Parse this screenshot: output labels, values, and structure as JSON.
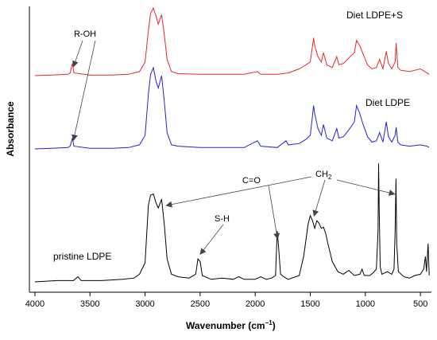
{
  "chart_data": {
    "type": "line",
    "title": "",
    "xlabel": "Wavenumber (cm⁻¹)",
    "xlabel_main": "Wavenumber (cm",
    "xlabel_sup": "−1",
    "xlabel_close": ")",
    "ylabel": "Absorbance",
    "x_reversed": true,
    "xlim": [
      4050,
      400
    ],
    "x_ticks": [
      4000,
      3500,
      3000,
      2500,
      2000,
      1500,
      1000,
      500
    ],
    "y_ticks_shown": false,
    "grid": false,
    "legend": "none (series labelled inline)",
    "series": [
      {
        "name": "Diet LDPE+S",
        "color": "#e8262a",
        "baseline": 0.0,
        "points": [
          [
            4000,
            0.0
          ],
          [
            3850,
            0.005
          ],
          [
            3700,
            0.01
          ],
          [
            3680,
            0.02
          ],
          [
            3660,
            0.09
          ],
          [
            3645,
            0.02
          ],
          [
            3500,
            0.005
          ],
          [
            3300,
            0.005
          ],
          [
            3150,
            0.01
          ],
          [
            3050,
            0.03
          ],
          [
            3000,
            0.1
          ],
          [
            2970,
            0.33
          ],
          [
            2950,
            0.46
          ],
          [
            2925,
            0.5
          ],
          [
            2900,
            0.44
          ],
          [
            2880,
            0.38
          ],
          [
            2850,
            0.45
          ],
          [
            2825,
            0.3
          ],
          [
            2800,
            0.12
          ],
          [
            2760,
            0.03
          ],
          [
            2700,
            0.015
          ],
          [
            2500,
            0.01
          ],
          [
            2300,
            0.01
          ],
          [
            2100,
            0.01
          ],
          [
            1980,
            0.03
          ],
          [
            1950,
            0.01
          ],
          [
            1800,
            0.01
          ],
          [
            1700,
            0.02
          ],
          [
            1600,
            0.05
          ],
          [
            1540,
            0.08
          ],
          [
            1500,
            0.1
          ],
          [
            1470,
            0.28
          ],
          [
            1460,
            0.22
          ],
          [
            1430,
            0.14
          ],
          [
            1400,
            0.1
          ],
          [
            1380,
            0.17
          ],
          [
            1350,
            0.08
          ],
          [
            1300,
            0.06
          ],
          [
            1260,
            0.14
          ],
          [
            1240,
            0.08
          ],
          [
            1200,
            0.09
          ],
          [
            1150,
            0.13
          ],
          [
            1100,
            0.17
          ],
          [
            1080,
            0.26
          ],
          [
            1050,
            0.22
          ],
          [
            1020,
            0.16
          ],
          [
            980,
            0.08
          ],
          [
            940,
            0.05
          ],
          [
            900,
            0.06
          ],
          [
            870,
            0.12
          ],
          [
            840,
            0.05
          ],
          [
            810,
            0.18
          ],
          [
            790,
            0.09
          ],
          [
            760,
            0.05
          ],
          [
            730,
            0.1
          ],
          [
            720,
            0.24
          ],
          [
            705,
            0.06
          ],
          [
            680,
            0.04
          ],
          [
            600,
            0.03
          ],
          [
            550,
            0.04
          ],
          [
            500,
            0.05
          ],
          [
            440,
            0.02
          ],
          [
            420,
            0.01
          ]
        ]
      },
      {
        "name": "Diet LDPE",
        "color": "#2222d8",
        "baseline": 0.0,
        "points": [
          [
            4000,
            0.0
          ],
          [
            3850,
            0.005
          ],
          [
            3700,
            0.01
          ],
          [
            3680,
            0.02
          ],
          [
            3660,
            0.08
          ],
          [
            3645,
            0.02
          ],
          [
            3500,
            0.005
          ],
          [
            3300,
            0.005
          ],
          [
            3150,
            0.01
          ],
          [
            3050,
            0.03
          ],
          [
            3000,
            0.1
          ],
          [
            2970,
            0.4
          ],
          [
            2950,
            0.55
          ],
          [
            2925,
            0.6
          ],
          [
            2900,
            0.5
          ],
          [
            2880,
            0.45
          ],
          [
            2850,
            0.54
          ],
          [
            2825,
            0.35
          ],
          [
            2800,
            0.12
          ],
          [
            2760,
            0.03
          ],
          [
            2700,
            0.02
          ],
          [
            2500,
            0.01
          ],
          [
            2300,
            0.01
          ],
          [
            2100,
            0.01
          ],
          [
            1980,
            0.06
          ],
          [
            1950,
            0.02
          ],
          [
            1800,
            0.01
          ],
          [
            1720,
            0.06
          ],
          [
            1700,
            0.03
          ],
          [
            1600,
            0.04
          ],
          [
            1540,
            0.07
          ],
          [
            1500,
            0.1
          ],
          [
            1470,
            0.32
          ],
          [
            1460,
            0.26
          ],
          [
            1430,
            0.15
          ],
          [
            1400,
            0.1
          ],
          [
            1380,
            0.18
          ],
          [
            1350,
            0.08
          ],
          [
            1300,
            0.06
          ],
          [
            1260,
            0.15
          ],
          [
            1240,
            0.08
          ],
          [
            1200,
            0.09
          ],
          [
            1150,
            0.14
          ],
          [
            1100,
            0.2
          ],
          [
            1080,
            0.32
          ],
          [
            1050,
            0.26
          ],
          [
            1020,
            0.18
          ],
          [
            980,
            0.09
          ],
          [
            940,
            0.05
          ],
          [
            900,
            0.06
          ],
          [
            870,
            0.12
          ],
          [
            840,
            0.05
          ],
          [
            810,
            0.2
          ],
          [
            790,
            0.09
          ],
          [
            760,
            0.05
          ],
          [
            730,
            0.1
          ],
          [
            720,
            0.16
          ],
          [
            705,
            0.05
          ],
          [
            680,
            0.03
          ],
          [
            600,
            0.02
          ],
          [
            500,
            0.03
          ],
          [
            440,
            0.02
          ],
          [
            420,
            0.01
          ]
        ]
      },
      {
        "name": "pristine LDPE",
        "color": "#000000",
        "baseline": 0.0,
        "points": [
          [
            4000,
            0.0
          ],
          [
            3800,
            0.01
          ],
          [
            3650,
            0.01
          ],
          [
            3610,
            0.04
          ],
          [
            3580,
            0.01
          ],
          [
            3400,
            0.01
          ],
          [
            3200,
            0.02
          ],
          [
            3100,
            0.03
          ],
          [
            3050,
            0.06
          ],
          [
            3000,
            0.15
          ],
          [
            2970,
            0.6
          ],
          [
            2950,
            0.68
          ],
          [
            2925,
            0.69
          ],
          [
            2900,
            0.62
          ],
          [
            2880,
            0.58
          ],
          [
            2850,
            0.65
          ],
          [
            2825,
            0.45
          ],
          [
            2800,
            0.18
          ],
          [
            2760,
            0.06
          ],
          [
            2700,
            0.04
          ],
          [
            2600,
            0.03
          ],
          [
            2540,
            0.06
          ],
          [
            2520,
            0.18
          ],
          [
            2500,
            0.16
          ],
          [
            2480,
            0.05
          ],
          [
            2400,
            0.02
          ],
          [
            2300,
            0.03
          ],
          [
            2200,
            0.02
          ],
          [
            2150,
            0.04
          ],
          [
            2100,
            0.02
          ],
          [
            2000,
            0.02
          ],
          [
            1950,
            0.04
          ],
          [
            1900,
            0.02
          ],
          [
            1850,
            0.03
          ],
          [
            1815,
            0.05
          ],
          [
            1800,
            0.4
          ],
          [
            1790,
            0.3
          ],
          [
            1770,
            0.06
          ],
          [
            1740,
            0.04
          ],
          [
            1700,
            0.02
          ],
          [
            1600,
            0.05
          ],
          [
            1560,
            0.2
          ],
          [
            1520,
            0.45
          ],
          [
            1500,
            0.52
          ],
          [
            1480,
            0.48
          ],
          [
            1460,
            0.42
          ],
          [
            1440,
            0.48
          ],
          [
            1420,
            0.46
          ],
          [
            1400,
            0.42
          ],
          [
            1380,
            0.43
          ],
          [
            1360,
            0.38
          ],
          [
            1340,
            0.3
          ],
          [
            1300,
            0.16
          ],
          [
            1250,
            0.08
          ],
          [
            1200,
            0.06
          ],
          [
            1150,
            0.09
          ],
          [
            1100,
            0.05
          ],
          [
            1050,
            0.06
          ],
          [
            1030,
            0.1
          ],
          [
            1010,
            0.05
          ],
          [
            960,
            0.05
          ],
          [
            930,
            0.07
          ],
          [
            900,
            0.1
          ],
          [
            885,
            0.4
          ],
          [
            880,
            0.93
          ],
          [
            875,
            0.6
          ],
          [
            865,
            0.12
          ],
          [
            850,
            0.06
          ],
          [
            800,
            0.08
          ],
          [
            760,
            0.06
          ],
          [
            740,
            0.1
          ],
          [
            730,
            0.4
          ],
          [
            722,
            0.81
          ],
          [
            715,
            0.3
          ],
          [
            700,
            0.08
          ],
          [
            650,
            0.04
          ],
          [
            600,
            0.03
          ],
          [
            550,
            0.05
          ],
          [
            500,
            0.06
          ],
          [
            470,
            0.1
          ],
          [
            455,
            0.2
          ],
          [
            445,
            0.08
          ],
          [
            430,
            0.3
          ],
          [
            420,
            0.05
          ]
        ]
      }
    ],
    "annotations": [
      {
        "text": "R-OH",
        "targets": [
          [
            3650,
            "Diet LDPE+S"
          ],
          [
            3650,
            "Diet LDPE"
          ]
        ]
      },
      {
        "text": "C=O",
        "targets": [
          [
            1790,
            "pristine LDPE"
          ]
        ]
      },
      {
        "text": "S-H",
        "targets": [
          [
            2520,
            "pristine LDPE"
          ]
        ]
      },
      {
        "text": "CH₂",
        "text_main": "CH",
        "text_sub": "2",
        "targets": [
          [
            2850,
            "pristine LDPE"
          ],
          [
            1480,
            "pristine LDPE"
          ],
          [
            720,
            "pristine LDPE"
          ]
        ]
      }
    ]
  }
}
